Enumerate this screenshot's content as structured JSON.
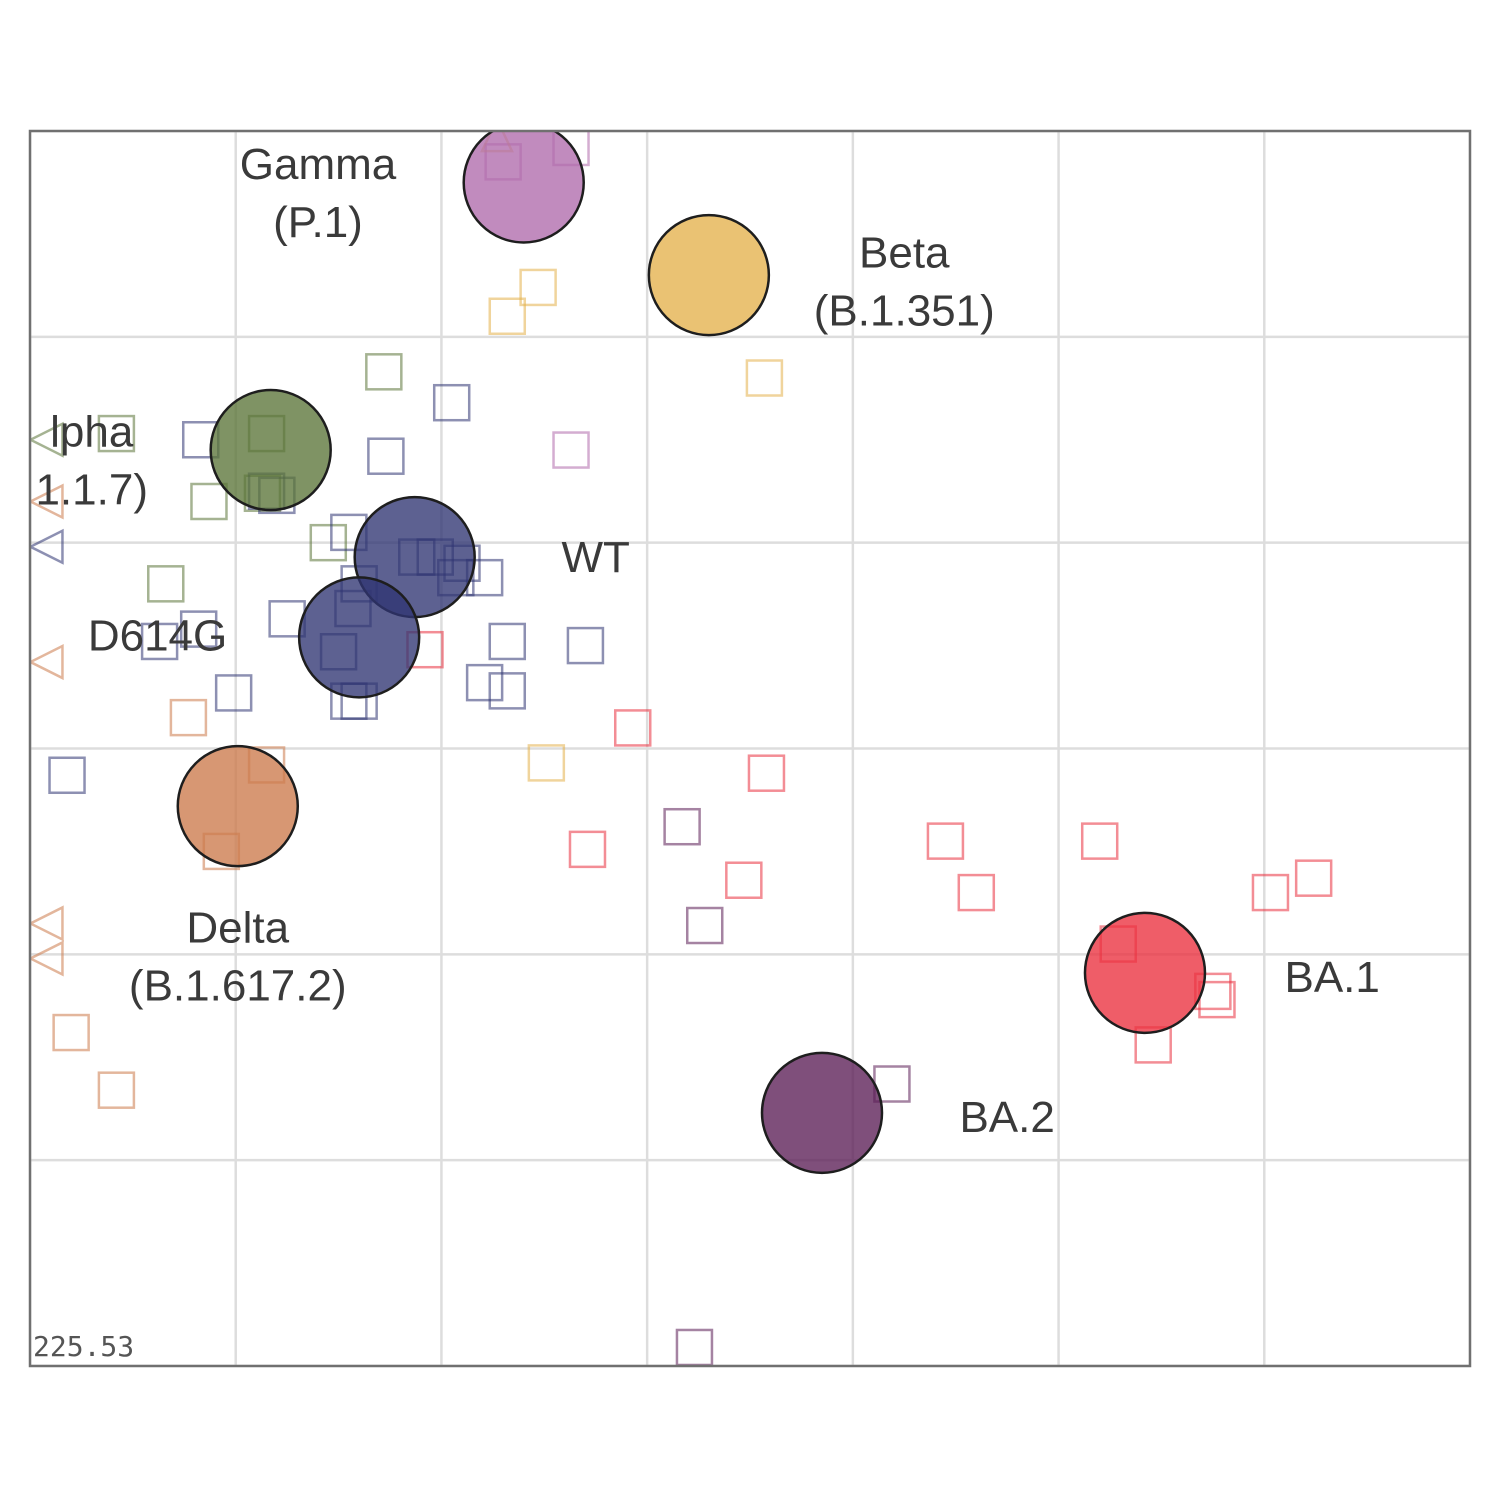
{
  "chart_data": {
    "type": "scatter",
    "title": "",
    "xlabel": "",
    "ylabel": "",
    "xlim": [
      -1,
      6
    ],
    "ylim": [
      -1,
      5
    ],
    "grid": true,
    "stress_label": "225.53",
    "colors": {
      "WT": "#2f3472",
      "D614G": "#2f3472",
      "Alpha": "#5b7438",
      "Beta": "#e4b14b",
      "Gamma": "#b06aac",
      "Delta": "#cc7a4b",
      "BA.1": "#ea2f3e",
      "BA.2": "#5b1e56"
    },
    "antigens": [
      {
        "name": "Gamma",
        "x": 1.4,
        "y": 4.75,
        "label_lines": [
          "Gamma",
          "(P.1)"
        ],
        "label_x": 0.4,
        "label_y": 4.7
      },
      {
        "name": "Beta",
        "x": 2.3,
        "y": 4.3,
        "label_lines": [
          "Beta",
          "(B.1.351)"
        ],
        "label_x": 3.25,
        "label_y": 4.27
      },
      {
        "name": "Alpha",
        "x": 0.17,
        "y": 3.45,
        "label_lines": [
          "lpha",
          "1.1.7)"
        ],
        "label_x": -0.7,
        "label_y": 3.4
      },
      {
        "name": "WT",
        "x": 0.87,
        "y": 2.93,
        "label_lines": [
          "WT"
        ],
        "label_x": 1.75,
        "label_y": 2.93
      },
      {
        "name": "D614G",
        "x": 0.6,
        "y": 2.54,
        "label_lines": [
          "D614G"
        ],
        "label_x": -0.38,
        "label_y": 2.55
      },
      {
        "name": "Delta",
        "x": 0.01,
        "y": 1.72,
        "label_lines": [
          "Delta",
          "(B.1.617.2)"
        ],
        "label_x": 0.01,
        "label_y": 0.99
      },
      {
        "name": "BA.1",
        "x": 4.42,
        "y": 0.91,
        "label_lines": [
          "BA.1"
        ],
        "label_x": 5.33,
        "label_y": 0.89
      },
      {
        "name": "BA.2",
        "x": 2.85,
        "y": 0.23,
        "label_lines": [
          "BA.2"
        ],
        "label_x": 3.75,
        "label_y": 0.21
      }
    ],
    "sera": [
      {
        "group": "Gamma",
        "x": 1.63,
        "y": 4.92
      },
      {
        "group": "Gamma",
        "x": 1.3,
        "y": 4.85
      },
      {
        "group": "Gamma",
        "x": 1.63,
        "y": 3.45
      },
      {
        "group": "Beta",
        "x": 1.47,
        "y": 4.24
      },
      {
        "group": "Beta",
        "x": 1.32,
        "y": 4.1
      },
      {
        "group": "Beta",
        "x": 2.57,
        "y": 3.8
      },
      {
        "group": "Beta",
        "x": 1.51,
        "y": 1.93
      },
      {
        "group": "Alpha",
        "x": 0.72,
        "y": 3.83
      },
      {
        "group": "Alpha",
        "x": -0.58,
        "y": 3.53
      },
      {
        "group": "Alpha",
        "x": 0.15,
        "y": 3.53
      },
      {
        "group": "Alpha",
        "x": 0.13,
        "y": 3.24
      },
      {
        "group": "Alpha",
        "x": -0.13,
        "y": 3.2
      },
      {
        "group": "Alpha",
        "x": 0.45,
        "y": 3.0
      },
      {
        "group": "Alpha",
        "x": -0.34,
        "y": 2.8
      },
      {
        "group": "WT",
        "x": 1.05,
        "y": 3.68
      },
      {
        "group": "WT",
        "x": -0.17,
        "y": 3.5
      },
      {
        "group": "WT",
        "x": 0.73,
        "y": 3.42
      },
      {
        "group": "WT",
        "x": 0.15,
        "y": 3.25
      },
      {
        "group": "WT",
        "x": 0.2,
        "y": 3.23
      },
      {
        "group": "WT",
        "x": 0.55,
        "y": 3.05
      },
      {
        "group": "WT",
        "x": 0.88,
        "y": 2.93
      },
      {
        "group": "WT",
        "x": 0.97,
        "y": 2.93
      },
      {
        "group": "WT",
        "x": 1.1,
        "y": 2.9
      },
      {
        "group": "WT",
        "x": 1.07,
        "y": 2.83
      },
      {
        "group": "WT",
        "x": 1.21,
        "y": 2.83
      },
      {
        "group": "WT",
        "x": 0.6,
        "y": 2.8
      },
      {
        "group": "WT",
        "x": 0.25,
        "y": 2.63
      },
      {
        "group": "WT",
        "x": 0.57,
        "y": 2.68
      },
      {
        "group": "WT",
        "x": -0.37,
        "y": 2.52
      },
      {
        "group": "WT",
        "x": -0.18,
        "y": 2.58
      },
      {
        "group": "WT",
        "x": 1.32,
        "y": 2.52
      },
      {
        "group": "WT",
        "x": 1.7,
        "y": 2.5
      },
      {
        "group": "WT",
        "x": 0.5,
        "y": 2.47
      },
      {
        "group": "WT",
        "x": 1.21,
        "y": 2.32
      },
      {
        "group": "WT",
        "x": 1.32,
        "y": 2.28
      },
      {
        "group": "WT",
        "x": -0.01,
        "y": 2.27
      },
      {
        "group": "WT",
        "x": 0.55,
        "y": 2.23
      },
      {
        "group": "WT",
        "x": 0.6,
        "y": 2.23
      },
      {
        "group": "WT",
        "x": -0.82,
        "y": 1.87
      },
      {
        "group": "Delta",
        "x": -0.23,
        "y": 2.15
      },
      {
        "group": "Delta",
        "x": 0.15,
        "y": 1.92
      },
      {
        "group": "Delta",
        "x": -0.07,
        "y": 1.5
      },
      {
        "group": "Delta",
        "x": -0.8,
        "y": 0.62
      },
      {
        "group": "Delta",
        "x": -0.58,
        "y": 0.34
      },
      {
        "group": "BA.1",
        "x": 0.92,
        "y": 2.48
      },
      {
        "group": "BA.1",
        "x": 1.93,
        "y": 2.1
      },
      {
        "group": "BA.1",
        "x": 2.58,
        "y": 1.88
      },
      {
        "group": "BA.1",
        "x": 1.71,
        "y": 1.51
      },
      {
        "group": "BA.1",
        "x": 2.47,
        "y": 1.36
      },
      {
        "group": "BA.1",
        "x": 3.45,
        "y": 1.55
      },
      {
        "group": "BA.1",
        "x": 3.6,
        "y": 1.3
      },
      {
        "group": "BA.1",
        "x": 4.2,
        "y": 1.55
      },
      {
        "group": "BA.1",
        "x": 5.24,
        "y": 1.37
      },
      {
        "group": "BA.1",
        "x": 5.03,
        "y": 1.3
      },
      {
        "group": "BA.1",
        "x": 4.29,
        "y": 1.05
      },
      {
        "group": "BA.1",
        "x": 4.75,
        "y": 0.82
      },
      {
        "group": "BA.1",
        "x": 4.77,
        "y": 0.78
      },
      {
        "group": "BA.1",
        "x": 4.46,
        "y": 0.56
      },
      {
        "group": "BA.2",
        "x": 2.17,
        "y": 1.62
      },
      {
        "group": "BA.2",
        "x": 2.28,
        "y": 1.14
      },
      {
        "group": "BA.2",
        "x": 3.19,
        "y": 0.37
      },
      {
        "group": "BA.2",
        "x": 2.23,
        "y": -0.91
      }
    ],
    "edge_markers": [
      {
        "group": "Beta",
        "x": 1.27,
        "y": 4.97,
        "direction": "up"
      },
      {
        "group": "Alpha",
        "x": -0.92,
        "y": 3.5,
        "direction": "left"
      },
      {
        "group": "Delta",
        "x": -0.92,
        "y": 3.2,
        "direction": "left"
      },
      {
        "group": "WT",
        "x": -0.92,
        "y": 2.98,
        "direction": "left"
      },
      {
        "group": "Delta",
        "x": -0.92,
        "y": 2.42,
        "direction": "left"
      },
      {
        "group": "Delta",
        "x": -0.92,
        "y": 1.15,
        "direction": "left"
      },
      {
        "group": "Delta",
        "x": -0.92,
        "y": 0.98,
        "direction": "left"
      }
    ]
  }
}
